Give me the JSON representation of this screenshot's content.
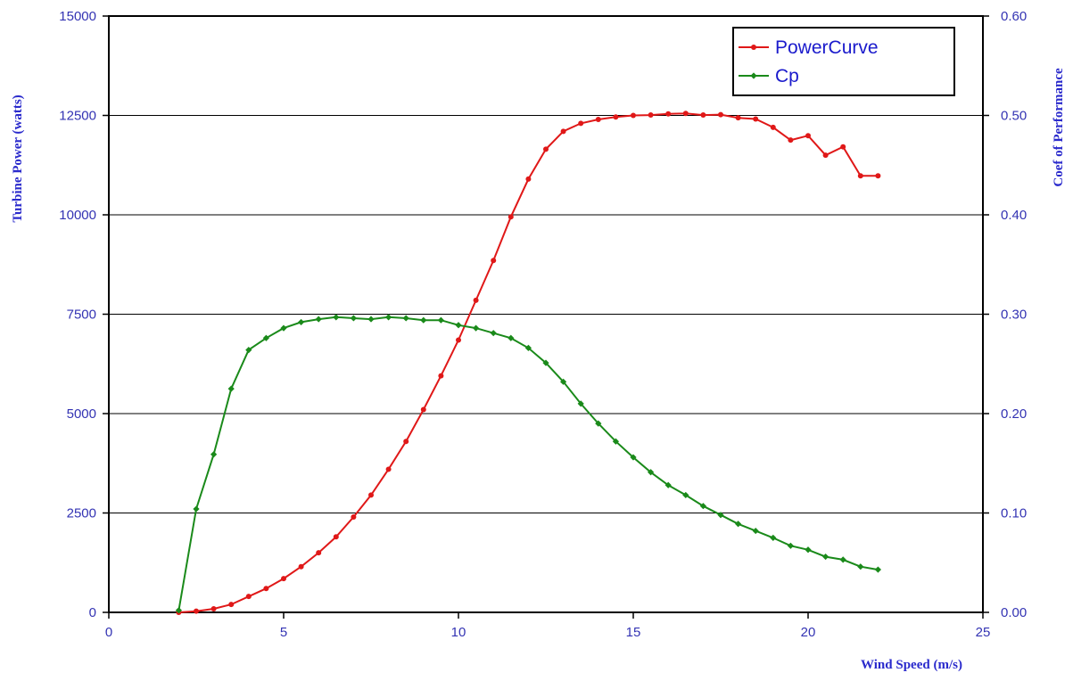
{
  "chart_data": {
    "type": "line",
    "xlabel": "Wind Speed (m/s)",
    "ylabel_left": "Turbine Power (watts)",
    "ylabel_right": "Coef of Performance",
    "xlim": [
      0,
      25
    ],
    "ylim_left": [
      0,
      15000
    ],
    "ylim_right": [
      0,
      0.6
    ],
    "x_ticks": [
      "0",
      "5",
      "10",
      "15",
      "20",
      "25"
    ],
    "y_left_ticks": [
      "0",
      "2500",
      "5000",
      "7500",
      "10000",
      "12500",
      "15000"
    ],
    "y_right_ticks": [
      "0.00",
      "0.10",
      "0.20",
      "0.30",
      "0.40",
      "0.50",
      "0.60"
    ],
    "grid": "horizontal",
    "legend_position": "top-right",
    "colors": {
      "axis_text": "#3333b3",
      "axis_title": "#2a2acc",
      "grid": "#000000",
      "powercurve": "#e01818",
      "cp": "#1a8a1a"
    },
    "series": [
      {
        "name": "PowerCurve",
        "axis": "left",
        "x": [
          2,
          2.5,
          3,
          3.5,
          4,
          4.5,
          5,
          5.5,
          6,
          6.5,
          7,
          7.5,
          8,
          8.5,
          9,
          9.5,
          10,
          10.5,
          11,
          11.5,
          12,
          12.5,
          13,
          13.5,
          14,
          14.5,
          15,
          15.5,
          16,
          16.5,
          17,
          17.5,
          18,
          18.5,
          19,
          19.5,
          20,
          20.5,
          21,
          21.5,
          22
        ],
        "values": [
          0,
          30,
          90,
          200,
          400,
          600,
          850,
          1150,
          1500,
          1900,
          2400,
          2950,
          3600,
          4300,
          5100,
          5950,
          6850,
          7850,
          8850,
          9950,
          10900,
          11650,
          12100,
          12300,
          12400,
          12460,
          12500,
          12510,
          12540,
          12550,
          12510,
          12520,
          12440,
          12410,
          12200,
          11880,
          11990,
          11500,
          11710,
          10980,
          10980
        ]
      },
      {
        "name": "Cp",
        "axis": "right",
        "x": [
          2,
          2.5,
          3,
          3.5,
          4,
          4.5,
          5,
          5.5,
          6,
          6.5,
          7,
          7.5,
          8,
          8.5,
          9,
          9.5,
          10,
          10.5,
          11,
          11.5,
          12,
          12.5,
          13,
          13.5,
          14,
          14.5,
          15,
          15.5,
          16,
          16.5,
          17,
          17.5,
          18,
          18.5,
          19,
          19.5,
          20,
          20.5,
          21,
          21.5,
          22
        ],
        "values": [
          0.002,
          0.104,
          0.159,
          0.225,
          0.264,
          0.276,
          0.286,
          0.292,
          0.295,
          0.297,
          0.296,
          0.295,
          0.297,
          0.296,
          0.294,
          0.294,
          0.289,
          0.286,
          0.281,
          0.276,
          0.266,
          0.251,
          0.232,
          0.21,
          0.19,
          0.172,
          0.156,
          0.141,
          0.128,
          0.118,
          0.107,
          0.098,
          0.089,
          0.082,
          0.075,
          0.067,
          0.063,
          0.056,
          0.053,
          0.046,
          0.043
        ]
      }
    ]
  }
}
